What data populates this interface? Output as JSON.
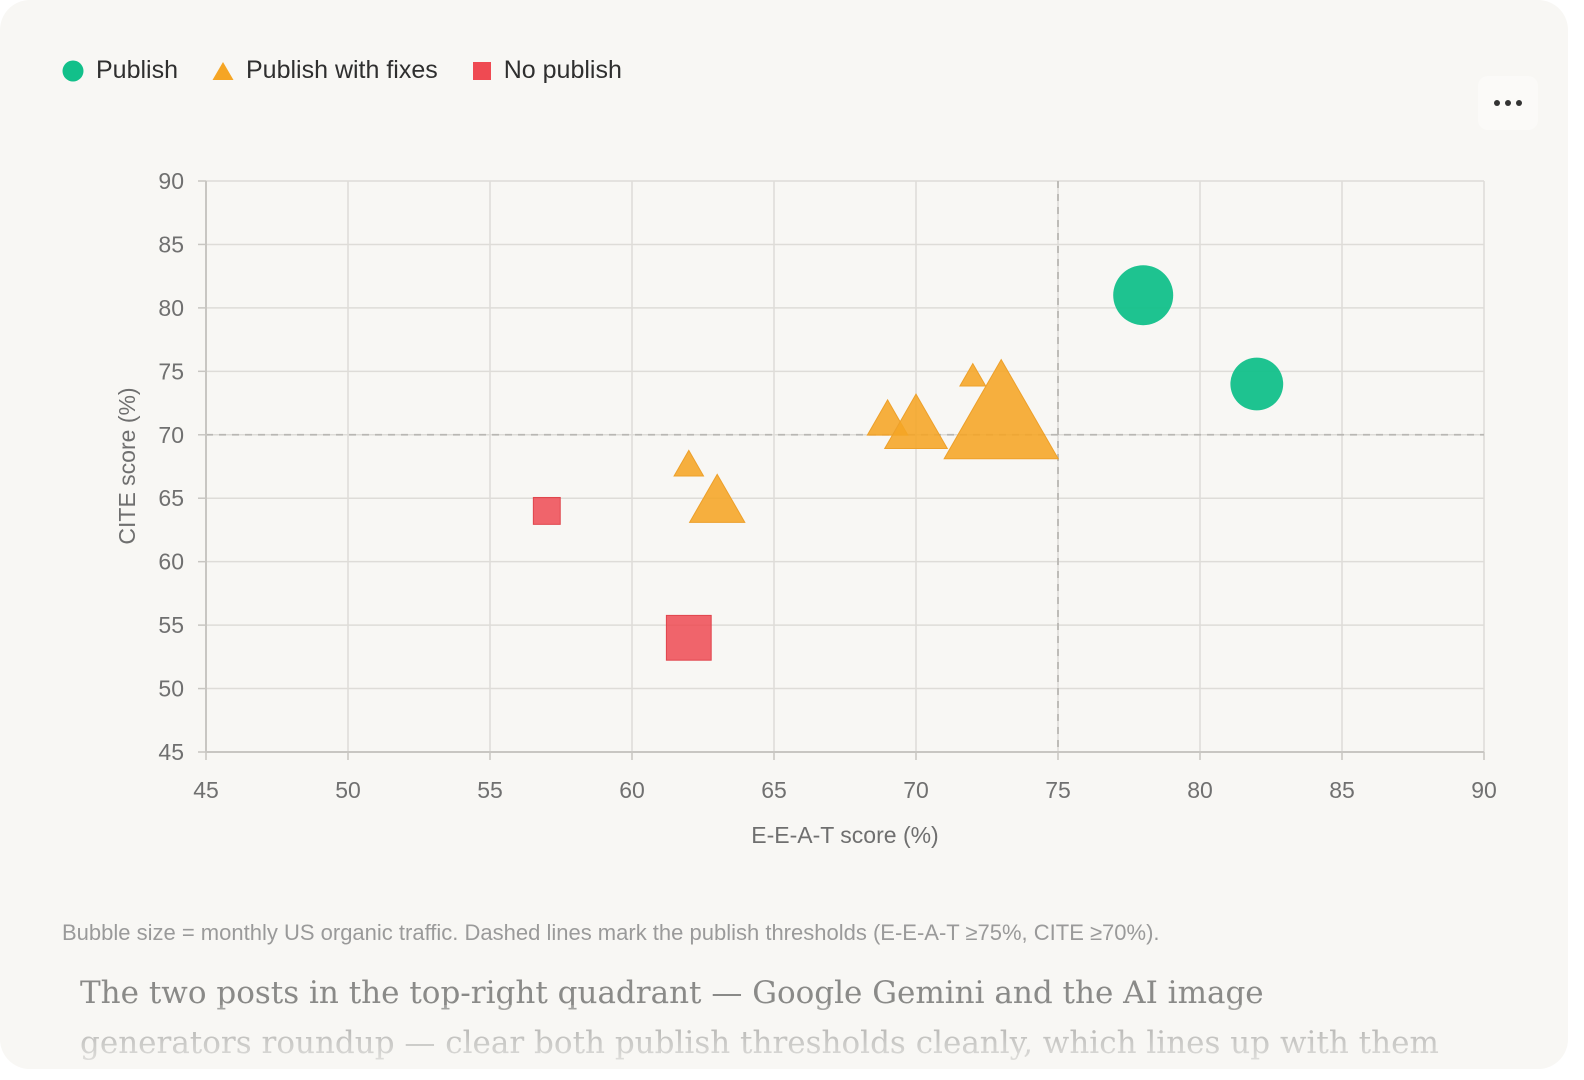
{
  "legend": [
    {
      "label": "Publish",
      "color": "#12c08a",
      "shape": "circle"
    },
    {
      "label": "Publish with fixes",
      "color": "#f5a524",
      "shape": "triangle"
    },
    {
      "label": "No publish",
      "color": "#ef4a52",
      "shape": "square"
    }
  ],
  "menu": {
    "icon": "more-horizontal-icon"
  },
  "chart_data": {
    "type": "scatter",
    "xlabel": "E-E-A-T score (%)",
    "ylabel": "CITE score (%)",
    "xlim": [
      45,
      90
    ],
    "ylim": [
      45,
      90
    ],
    "xticks": [
      45,
      50,
      55,
      60,
      65,
      70,
      75,
      80,
      85,
      90
    ],
    "yticks": [
      45,
      50,
      55,
      60,
      65,
      70,
      75,
      80,
      85,
      90
    ],
    "grid": true,
    "legend_position": "top-left",
    "thresholds": {
      "x": 75,
      "y": 70
    },
    "series": [
      {
        "name": "Publish",
        "color": "#12c08a",
        "marker": "circle",
        "points": [
          {
            "x": 78,
            "y": 81,
            "size": 1.0
          },
          {
            "x": 82,
            "y": 74,
            "size": 0.88
          }
        ]
      },
      {
        "name": "Publish with fixes",
        "color": "#f5a524",
        "marker": "triangle",
        "points": [
          {
            "x": 72,
            "y": 74.5,
            "size": 0.35
          },
          {
            "x": 69,
            "y": 71,
            "size": 0.55
          },
          {
            "x": 70,
            "y": 70.5,
            "size": 0.85
          },
          {
            "x": 73,
            "y": 71,
            "size": 1.55
          },
          {
            "x": 62,
            "y": 67.5,
            "size": 0.4
          },
          {
            "x": 63,
            "y": 64.5,
            "size": 0.75
          }
        ]
      },
      {
        "name": "No publish",
        "color": "#ef4a52",
        "marker": "square",
        "points": [
          {
            "x": 57,
            "y": 64,
            "size": 0.48
          },
          {
            "x": 62,
            "y": 54,
            "size": 0.8
          }
        ]
      }
    ]
  },
  "caption": "Bubble size = monthly US organic traffic. Dashed lines mark the publish thresholds (E-E-A-T ≥75%, CITE ≥70%).",
  "body_text": "The two posts in the top-right quadrant — Google Gemini and the AI image generators roundup — clear both publish thresholds cleanly, which lines up with them having the"
}
